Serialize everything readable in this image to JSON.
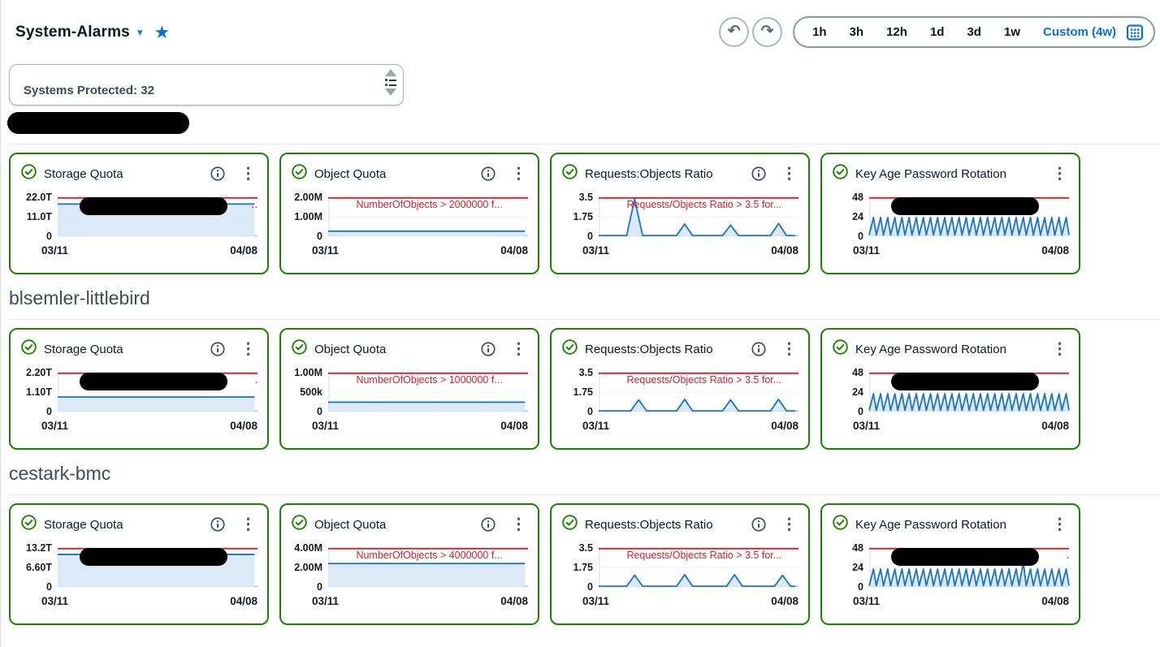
{
  "colors": {
    "accent_blue": "#0972d3",
    "ok_green": "#1d8102",
    "alarm_red": "#d91e2a",
    "line_blue": "#2279bd",
    "fill_blue": "#d8e7f5",
    "grid_mid": "#f0f1f2",
    "grid_zero": "#bfc6cc",
    "axis_line": "#d9dde1"
  },
  "header": {
    "title": "System-Alarms",
    "dropdown_caret": "▾",
    "favorite_star": "★",
    "undo_glyph": "↶",
    "redo_glyph": "↷",
    "time_ranges": [
      "1h",
      "3h",
      "12h",
      "1d",
      "3d",
      "1w"
    ],
    "custom_label": "Custom (4w)"
  },
  "filter": {
    "value": "Systems Protected: 32"
  },
  "axis": {
    "x_start": "03/11",
    "x_end": "04/08"
  },
  "sections": [
    {
      "title": "",
      "title_redacted": true,
      "cards": [
        {
          "title": "Storage Quota",
          "has_info": true,
          "ticks": [
            "22.0T",
            "11.0T",
            "0"
          ],
          "axis_max": 22,
          "threshold": 22,
          "threshold_text": "",
          "redacted": true,
          "remnant": "..",
          "series": {
            "type": "flat",
            "value": 18.2
          }
        },
        {
          "title": "Object Quota",
          "has_info": true,
          "ticks": [
            "2.00M",
            "1.00M",
            "0"
          ],
          "axis_max": 2,
          "threshold": 2,
          "threshold_text": "NumberOfObjects > 2000000 f...",
          "redacted": false,
          "remnant": "",
          "series": {
            "type": "flat",
            "value": 0.26
          }
        },
        {
          "title": "Requests:Objects Ratio",
          "has_info": true,
          "ticks": [
            "3.5",
            "1.75",
            "0"
          ],
          "axis_max": 3.5,
          "threshold": 3.5,
          "threshold_text": "Requests/Objects Ratio > 3.5 for...",
          "redacted": false,
          "remnant": "",
          "series": {
            "type": "spikes",
            "baseline": 0.06,
            "half": 0.04,
            "spikes": [
              {
                "x": 0.18,
                "v": 3.35
              },
              {
                "x": 0.43,
                "v": 1.1
              },
              {
                "x": 0.66,
                "v": 1.0
              },
              {
                "x": 0.9,
                "v": 1.15
              }
            ]
          }
        },
        {
          "title": "Key Age Password Rotation",
          "has_info": false,
          "ticks": [
            "48",
            "24",
            "0"
          ],
          "axis_max": 48,
          "threshold": 48,
          "threshold_text": "",
          "redacted": true,
          "remnant": "",
          "series": {
            "type": "sawtooth",
            "teeth": 28,
            "min": 1.5,
            "max": 23
          }
        }
      ]
    },
    {
      "title": "blsemler-littlebird",
      "title_redacted": false,
      "cards": [
        {
          "title": "Storage Quota",
          "has_info": true,
          "ticks": [
            "2.20T",
            "1.10T",
            "0"
          ],
          "axis_max": 2.2,
          "threshold": 2.2,
          "threshold_text": "",
          "redacted": true,
          "remnant": ".",
          "series": {
            "type": "flat",
            "value": 0.82
          }
        },
        {
          "title": "Object Quota",
          "has_info": true,
          "ticks": [
            "1.00M",
            "500k",
            "0"
          ],
          "axis_max": 1,
          "threshold": 1,
          "threshold_text": "NumberOfObjects > 1000000 f...",
          "redacted": false,
          "remnant": "",
          "series": {
            "type": "flat",
            "value": 0.24
          }
        },
        {
          "title": "Requests:Objects Ratio",
          "has_info": true,
          "ticks": [
            "3.5",
            "1.75",
            "0"
          ],
          "axis_max": 3.5,
          "threshold": 3.5,
          "threshold_text": "Requests/Objects Ratio > 3.5 for...",
          "redacted": false,
          "remnant": "",
          "series": {
            "type": "spikes",
            "baseline": 0.06,
            "half": 0.04,
            "spikes": [
              {
                "x": 0.2,
                "v": 1.05
              },
              {
                "x": 0.43,
                "v": 1.1
              },
              {
                "x": 0.66,
                "v": 1.05
              },
              {
                "x": 0.9,
                "v": 1.1
              }
            ]
          }
        },
        {
          "title": "Key Age Password Rotation",
          "has_info": false,
          "ticks": [
            "48",
            "24",
            "0"
          ],
          "axis_max": 48,
          "threshold": 48,
          "threshold_text": "",
          "redacted": true,
          "remnant": "",
          "series": {
            "type": "sawtooth",
            "teeth": 28,
            "min": 1.5,
            "max": 22
          }
        }
      ]
    },
    {
      "title": "cestark-bmc",
      "title_redacted": false,
      "cards": [
        {
          "title": "Storage Quota",
          "has_info": true,
          "ticks": [
            "13.2T",
            "6.60T",
            "0"
          ],
          "axis_max": 13.2,
          "threshold": 13.2,
          "threshold_text": "",
          "redacted": true,
          "remnant": "",
          "series": {
            "type": "flat",
            "value": 11.0
          }
        },
        {
          "title": "Object Quota",
          "has_info": true,
          "ticks": [
            "4.00M",
            "2.00M",
            "0"
          ],
          "axis_max": 4,
          "threshold": 4,
          "threshold_text": "NumberOfObjects > 4000000 f...",
          "redacted": false,
          "remnant": "",
          "series": {
            "type": "flat",
            "value": 2.4
          }
        },
        {
          "title": "Requests:Objects Ratio",
          "has_info": true,
          "ticks": [
            "3.5",
            "1.75",
            "0"
          ],
          "axis_max": 3.5,
          "threshold": 3.5,
          "threshold_text": "Requests/Objects Ratio > 3.5 for...",
          "redacted": false,
          "remnant": "",
          "series": {
            "type": "spikes",
            "baseline": 0.06,
            "half": 0.04,
            "spikes": [
              {
                "x": 0.18,
                "v": 1.05
              },
              {
                "x": 0.43,
                "v": 1.1
              },
              {
                "x": 0.68,
                "v": 1.1
              },
              {
                "x": 0.92,
                "v": 1.05
              }
            ]
          }
        },
        {
          "title": "Key Age Password Rotation",
          "has_info": false,
          "ticks": [
            "48",
            "24",
            "0"
          ],
          "axis_max": 48,
          "threshold": 48,
          "threshold_text": "",
          "redacted": true,
          "remnant": ".",
          "series": {
            "type": "sawtooth",
            "teeth": 28,
            "min": 1.5,
            "max": 22,
            "anomaly": {
              "index": 21,
              "v": 30
            }
          }
        }
      ]
    }
  ]
}
